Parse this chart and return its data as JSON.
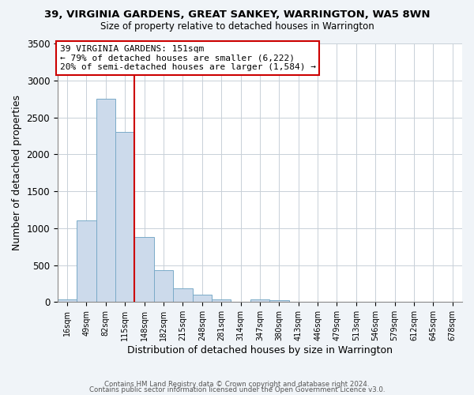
{
  "title": "39, VIRGINIA GARDENS, GREAT SANKEY, WARRINGTON, WA5 8WN",
  "subtitle": "Size of property relative to detached houses in Warrington",
  "xlabel": "Distribution of detached houses by size in Warrington",
  "ylabel": "Number of detached properties",
  "bar_color": "#ccdaeb",
  "bar_edge_color": "#7aaac8",
  "bin_labels": [
    "16sqm",
    "49sqm",
    "82sqm",
    "115sqm",
    "148sqm",
    "182sqm",
    "215sqm",
    "248sqm",
    "281sqm",
    "314sqm",
    "347sqm",
    "380sqm",
    "413sqm",
    "446sqm",
    "479sqm",
    "513sqm",
    "546sqm",
    "579sqm",
    "612sqm",
    "645sqm",
    "678sqm"
  ],
  "bar_values": [
    40,
    1100,
    2750,
    2300,
    880,
    430,
    185,
    95,
    40,
    0,
    35,
    20,
    5,
    0,
    0,
    0,
    0,
    0,
    5,
    0,
    0
  ],
  "ylim": [
    0,
    3500
  ],
  "yticks": [
    0,
    500,
    1000,
    1500,
    2000,
    2500,
    3000,
    3500
  ],
  "vline_bin": 4,
  "vline_color": "#cc0000",
  "annotation_line1": "39 VIRGINIA GARDENS: 151sqm",
  "annotation_line2": "← 79% of detached houses are smaller (6,222)",
  "annotation_line3": "20% of semi-detached houses are larger (1,584) →",
  "annotation_box_color": "#cc0000",
  "footer_line1": "Contains HM Land Registry data © Crown copyright and database right 2024.",
  "footer_line2": "Contains public sector information licensed under the Open Government Licence v3.0.",
  "background_color": "#f0f4f8",
  "plot_background_color": "#ffffff",
  "grid_color": "#c8d0d8"
}
